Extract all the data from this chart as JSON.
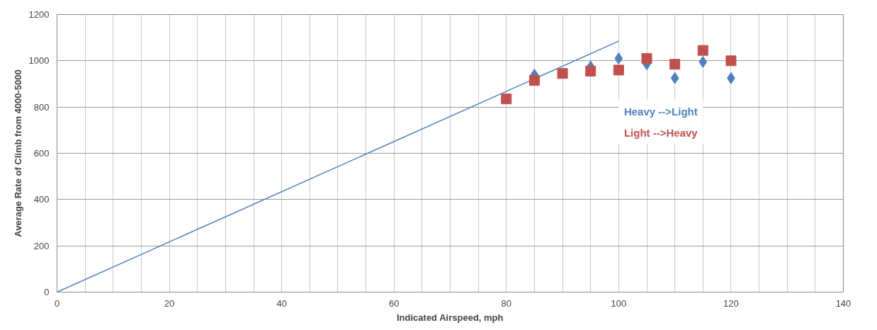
{
  "chart_data": {
    "type": "scatter",
    "xlabel": "Indicated Airspeed, mph",
    "ylabel": "Average Rate of Climb from 4000-5000",
    "xlim": [
      0,
      140
    ],
    "ylim": [
      0,
      1200
    ],
    "xticks": [
      0,
      {
        "value": 5,
        "label": null
      },
      {
        "value": 10,
        "label": null
      },
      {
        "value": 15,
        "label": null
      },
      20,
      {
        "value": 25,
        "label": null
      },
      {
        "value": 30,
        "label": null
      },
      {
        "value": 35,
        "label": null
      },
      40,
      {
        "value": 45,
        "label": null
      },
      {
        "value": 50,
        "label": null
      },
      {
        "value": 55,
        "label": null
      },
      60,
      {
        "value": 65,
        "label": null
      },
      {
        "value": 70,
        "label": null
      },
      {
        "value": 75,
        "label": null
      },
      80,
      {
        "value": 85,
        "label": null
      },
      {
        "value": 90,
        "label": null
      },
      {
        "value": 95,
        "label": null
      },
      100,
      {
        "value": 105,
        "label": null
      },
      {
        "value": 110,
        "label": null
      },
      {
        "value": 115,
        "label": null
      },
      120,
      {
        "value": 125,
        "label": null
      },
      {
        "value": 130,
        "label": null
      },
      {
        "value": 135,
        "label": null
      },
      140
    ],
    "yticks": [
      0,
      200,
      400,
      600,
      800,
      1000,
      1200
    ],
    "grid": true,
    "legend": "right",
    "series": [
      {
        "type": "line",
        "color": "#4f81bd",
        "x": [
          0,
          100
        ],
        "values": [
          0,
          1085
        ],
        "marker": "none"
      },
      {
        "name": "Heavy -->Light",
        "color": "#4f81bd",
        "marker": "diamond",
        "x": [
          85,
          90,
          95,
          100,
          105,
          110,
          115,
          120
        ],
        "values": [
          940,
          null,
          975,
          1010,
          985,
          925,
          995,
          925
        ]
      },
      {
        "name": "Light -->Heavy",
        "color": "#c0504d",
        "marker": "square",
        "x": [
          80,
          85,
          90,
          95,
          100,
          105,
          110,
          115,
          120
        ],
        "values": [
          835,
          915,
          945,
          955,
          960,
          1010,
          985,
          1045,
          1000
        ]
      }
    ]
  }
}
